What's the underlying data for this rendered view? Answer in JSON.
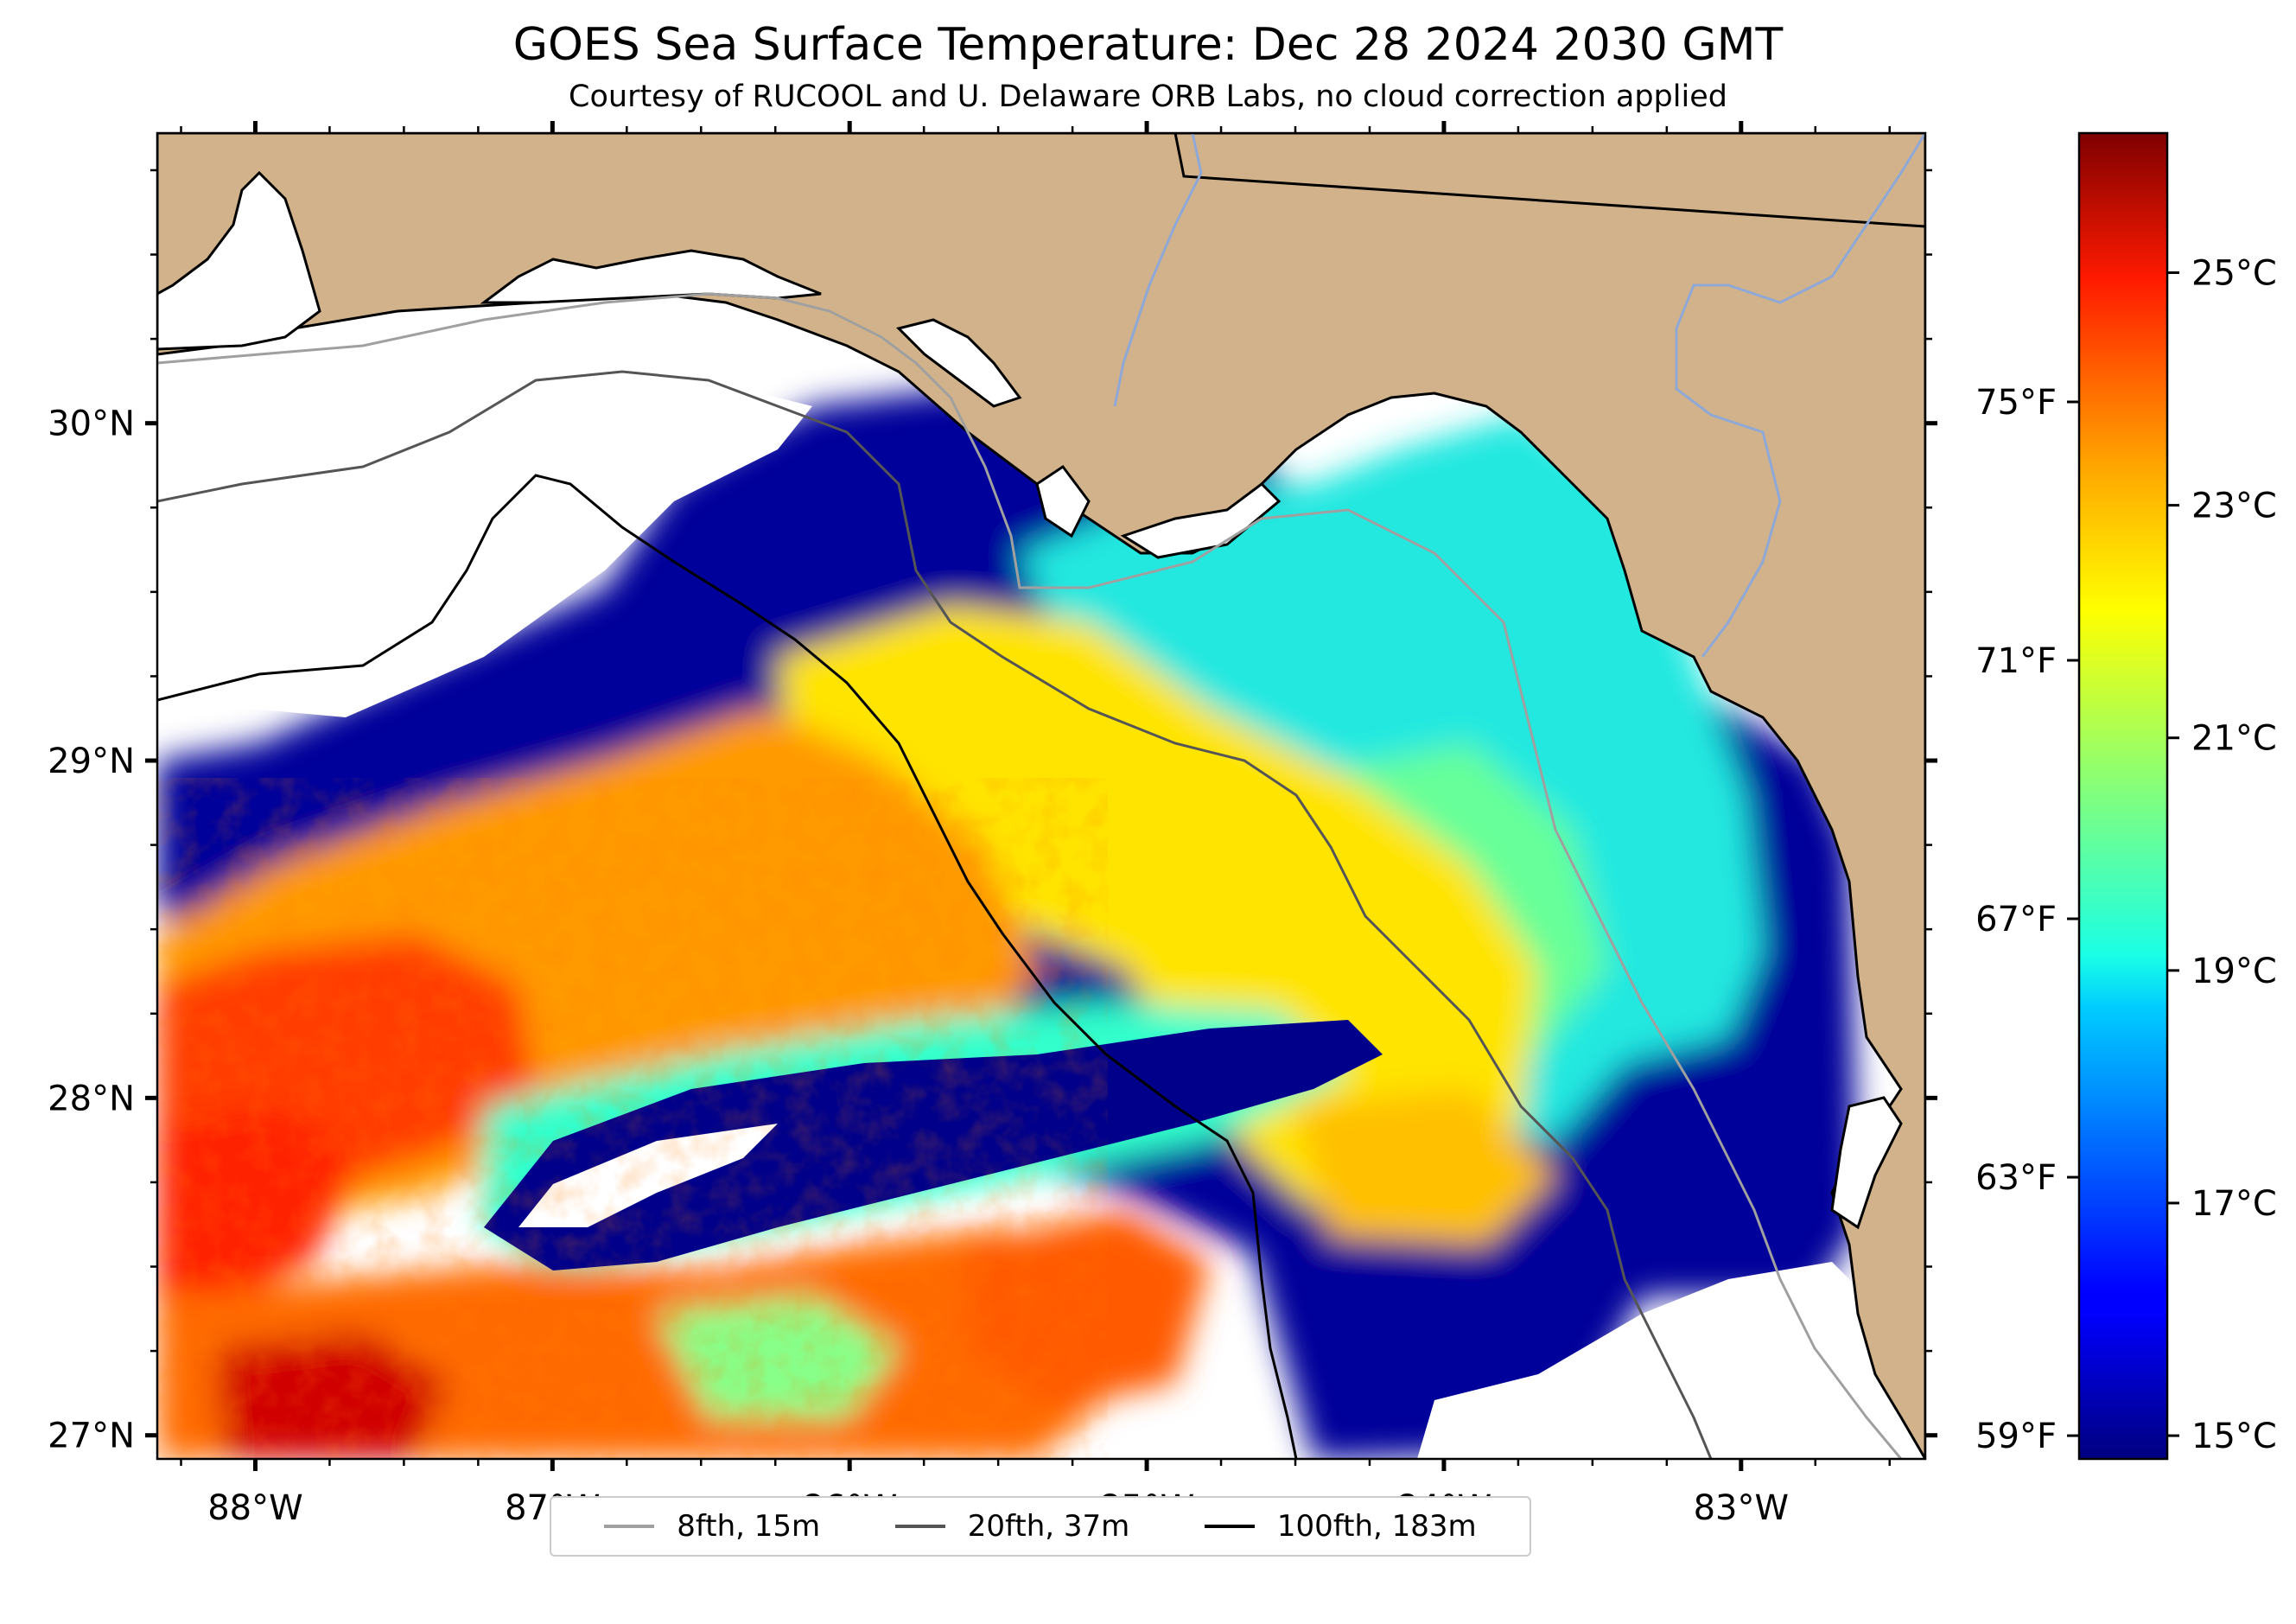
{
  "map": {
    "title": "GOES Sea Surface Temperature: Dec 28 2024 2030 GMT",
    "subtitle": "Courtesy of RUCOOL and U. Delaware ORB Labs, no cloud correction applied",
    "extent": {
      "lon": [
        -88.33,
        -82.38
      ],
      "lat": [
        26.93,
        30.86
      ]
    },
    "lon_ticks": [
      {
        "value": -88,
        "label": "88°W"
      },
      {
        "value": -87,
        "label": "87°W"
      },
      {
        "value": -86,
        "label": "86°W"
      },
      {
        "value": -85,
        "label": "85°W"
      },
      {
        "value": -84,
        "label": "84°W"
      },
      {
        "value": -83,
        "label": "83°W"
      }
    ],
    "lat_ticks": [
      {
        "value": 30,
        "label": "30°N"
      },
      {
        "value": 29,
        "label": "29°N"
      },
      {
        "value": 28,
        "label": "28°N"
      },
      {
        "value": 27,
        "label": "27°N"
      }
    ],
    "colors": {
      "land": "#d1b28b",
      "nodata": "#ffffff",
      "coastline": "#000000",
      "rivers": "#8fa8d6"
    }
  },
  "colorbar": {
    "range_c": [
      14.8,
      26.2
    ],
    "celsius_ticks": [
      {
        "value": 25,
        "label": "25°C"
      },
      {
        "value": 23,
        "label": "23°C"
      },
      {
        "value": 21,
        "label": "21°C"
      },
      {
        "value": 19,
        "label": "19°C"
      },
      {
        "value": 17,
        "label": "17°C"
      },
      {
        "value": 15,
        "label": "15°C"
      }
    ],
    "fahrenheit_ticks": [
      {
        "value": 75,
        "label": "75°F"
      },
      {
        "value": 71,
        "label": "71°F"
      },
      {
        "value": 67,
        "label": "67°F"
      },
      {
        "value": 63,
        "label": "63°F"
      },
      {
        "value": 59,
        "label": "59°F"
      }
    ],
    "colormap": "jet"
  },
  "legend": {
    "items": [
      {
        "label": "8fth, 15m",
        "color": "#a0a0a0"
      },
      {
        "label": "20fth, 37m",
        "color": "#555555"
      },
      {
        "label": "100fth, 183m",
        "color": "#000000"
      }
    ]
  }
}
